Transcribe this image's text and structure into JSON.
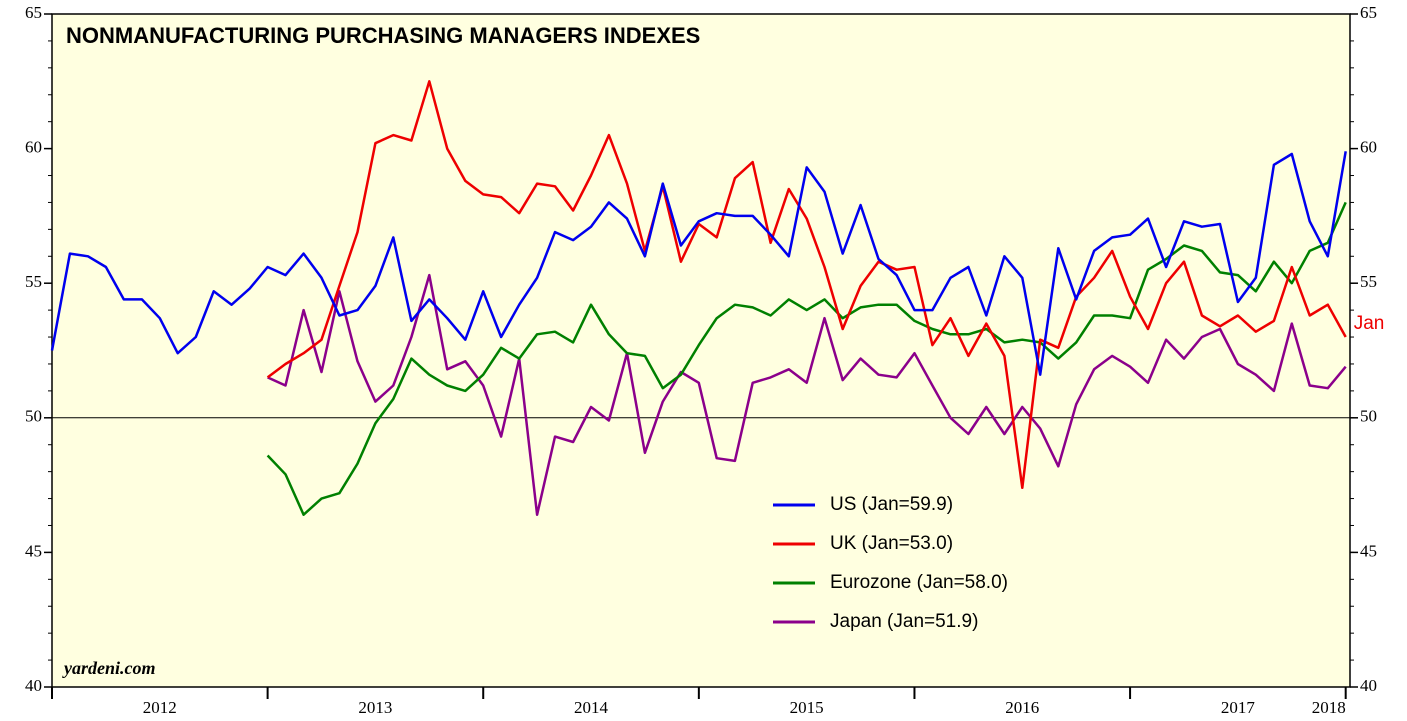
{
  "chart_data": {
    "type": "line",
    "title": "NONMANUFACTURING PURCHASING MANAGERS INDEXES",
    "source": "yardeni.com",
    "annotation": "Jan",
    "x": [
      2012.0,
      2012.083,
      2012.167,
      2012.25,
      2012.333,
      2012.417,
      2012.5,
      2012.583,
      2012.667,
      2012.75,
      2012.833,
      2012.917,
      2013.0,
      2013.083,
      2013.167,
      2013.25,
      2013.333,
      2013.417,
      2013.5,
      2013.583,
      2013.667,
      2013.75,
      2013.833,
      2013.917,
      2014.0,
      2014.083,
      2014.167,
      2014.25,
      2014.333,
      2014.417,
      2014.5,
      2014.583,
      2014.667,
      2014.75,
      2014.833,
      2014.917,
      2015.0,
      2015.083,
      2015.167,
      2015.25,
      2015.333,
      2015.417,
      2015.5,
      2015.583,
      2015.667,
      2015.75,
      2015.833,
      2015.917,
      2016.0,
      2016.083,
      2016.167,
      2016.25,
      2016.333,
      2016.417,
      2016.5,
      2016.583,
      2016.667,
      2016.75,
      2016.833,
      2016.917,
      2017.0,
      2017.083,
      2017.167,
      2017.25,
      2017.333,
      2017.417,
      2017.5,
      2017.583,
      2017.667,
      2017.75,
      2017.833,
      2017.917,
      2018.0
    ],
    "series": [
      {
        "name": "US (Jan=59.9)",
        "color": "#0000ee",
        "values": [
          52.5,
          56.1,
          56.0,
          55.6,
          54.4,
          54.4,
          53.7,
          52.4,
          53.0,
          54.7,
          54.2,
          54.8,
          55.6,
          55.3,
          56.1,
          55.2,
          53.8,
          54.0,
          54.9,
          56.7,
          53.6,
          54.4,
          53.7,
          52.9,
          54.7,
          53.0,
          54.2,
          55.2,
          56.9,
          56.6,
          57.1,
          58.0,
          57.4,
          56.0,
          58.7,
          56.4,
          57.3,
          57.6,
          57.5,
          57.5,
          56.8,
          56.0,
          59.3,
          58.4,
          56.1,
          57.9,
          55.9,
          55.3,
          54.0,
          54.0,
          55.2,
          55.6,
          53.8,
          56.0,
          55.2,
          51.6,
          56.3,
          54.4,
          56.2,
          56.7,
          56.8,
          57.4,
          55.6,
          57.3,
          57.1,
          57.2,
          54.3,
          55.2,
          59.4,
          59.8,
          57.3,
          56.0,
          59.9
        ]
      },
      {
        "name": "UK (Jan=53.0)",
        "color": "#ee0000",
        "values": [
          null,
          null,
          null,
          null,
          null,
          null,
          null,
          null,
          null,
          null,
          null,
          null,
          51.5,
          52.0,
          52.4,
          52.9,
          54.9,
          56.9,
          60.2,
          60.5,
          60.3,
          62.5,
          60.0,
          58.8,
          58.3,
          58.2,
          57.6,
          58.7,
          58.6,
          57.7,
          59.0,
          60.5,
          58.7,
          56.2,
          58.6,
          55.8,
          57.2,
          56.7,
          58.9,
          59.5,
          56.5,
          58.5,
          57.4,
          55.6,
          53.3,
          54.9,
          55.8,
          55.5,
          55.6,
          52.7,
          53.7,
          52.3,
          53.5,
          52.3,
          47.4,
          52.9,
          52.6,
          54.5,
          55.2,
          56.2,
          54.5,
          53.3,
          55.0,
          55.8,
          53.8,
          53.4,
          53.8,
          53.2,
          53.6,
          55.6,
          53.8,
          54.2,
          53.0
        ]
      },
      {
        "name": "Eurozone (Jan=58.0)",
        "color": "#008000",
        "values": [
          null,
          null,
          null,
          null,
          null,
          null,
          null,
          null,
          null,
          null,
          null,
          null,
          48.6,
          47.9,
          46.4,
          47.0,
          47.2,
          48.3,
          49.8,
          50.7,
          52.2,
          51.6,
          51.2,
          51.0,
          51.6,
          52.6,
          52.2,
          53.1,
          53.2,
          52.8,
          54.2,
          53.1,
          52.4,
          52.3,
          51.1,
          51.6,
          52.7,
          53.7,
          54.2,
          54.1,
          53.8,
          54.4,
          54.0,
          54.4,
          53.7,
          54.1,
          54.2,
          54.2,
          53.6,
          53.3,
          53.1,
          53.1,
          53.3,
          52.8,
          52.9,
          52.8,
          52.2,
          52.8,
          53.8,
          53.8,
          53.7,
          55.5,
          55.9,
          56.4,
          56.2,
          55.4,
          55.3,
          54.7,
          55.8,
          55.0,
          56.2,
          56.5,
          58.0
        ]
      },
      {
        "name": "Japan (Jan=51.9)",
        "color": "#8b008b",
        "values": [
          null,
          null,
          null,
          null,
          null,
          null,
          null,
          null,
          null,
          null,
          null,
          null,
          51.5,
          51.2,
          54.0,
          51.7,
          54.7,
          52.1,
          50.6,
          51.2,
          53.0,
          55.3,
          51.8,
          52.1,
          51.2,
          49.3,
          52.2,
          46.4,
          49.3,
          49.1,
          50.4,
          49.9,
          52.4,
          48.7,
          50.6,
          51.7,
          51.3,
          48.5,
          48.4,
          51.3,
          51.5,
          51.8,
          51.3,
          53.7,
          51.4,
          52.2,
          51.6,
          51.5,
          52.4,
          51.2,
          50.0,
          49.4,
          50.4,
          49.4,
          50.4,
          49.6,
          48.2,
          50.5,
          51.8,
          52.3,
          51.9,
          51.3,
          52.9,
          52.2,
          53.0,
          53.3,
          52.0,
          51.6,
          51.0,
          53.5,
          51.2,
          51.1,
          51.9
        ]
      }
    ],
    "xlim": [
      2012.0,
      2018.02
    ],
    "xticks": [
      2012,
      2013,
      2014,
      2015,
      2016,
      2017,
      2018
    ],
    "ylim": [
      40,
      65
    ],
    "yticks": [
      40,
      45,
      50,
      55,
      60,
      65
    ],
    "reference_line": 50,
    "legend": "lower center",
    "background": "#ffffe0"
  }
}
